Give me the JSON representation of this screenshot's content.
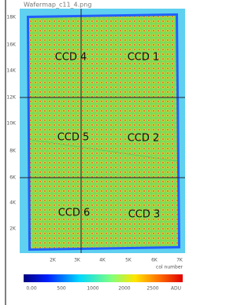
{
  "figure": {
    "title": "Wafermap_c11_4.png",
    "ccd_labels": [
      "CCD 4",
      "CCD 1",
      "CCD 5",
      "CCD 2",
      "CCD 6",
      "CCD 3"
    ],
    "y_axis_labels": [
      "18K",
      "16K",
      "14K",
      "12K",
      "10K",
      "8K",
      "6K",
      "4K",
      "2K"
    ],
    "x_axis_labels": [
      "2K",
      "3K",
      "4K",
      "5K",
      "6K",
      "7K"
    ],
    "x_axis_title": "col number",
    "colorbar_labels": [
      "0.00",
      "500",
      "1000",
      "2000",
      "2500"
    ],
    "colorbar_unit": "ADU"
  }
}
